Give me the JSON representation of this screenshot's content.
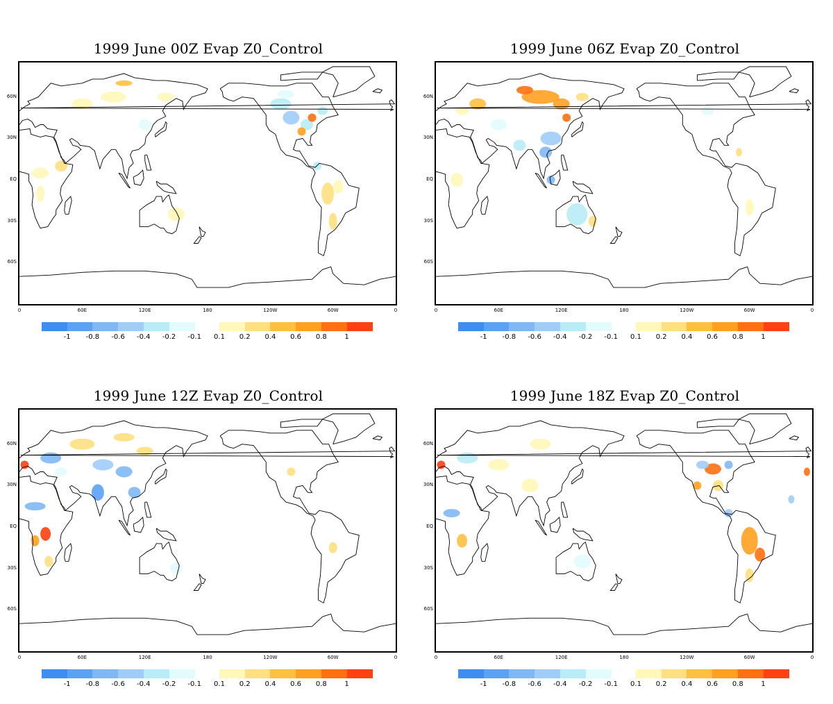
{
  "panels": [
    {
      "title": "1999 June  00Z Evap Z0_Control",
      "hour": "00Z"
    },
    {
      "title": "1999  June 06Z Evap Z0_Control",
      "hour": "06Z"
    },
    {
      "title": "1999  June 12Z Evap Z0_Control",
      "hour": "12Z"
    },
    {
      "title": "1999  June 18Z Evap Z0_Control",
      "hour": "18Z"
    }
  ],
  "lat_labels": [
    "60N",
    "30N",
    "EQ",
    "30S",
    "60S"
  ],
  "lon_labels": [
    "0",
    "60E",
    "120E",
    "180",
    "120W",
    "60W",
    "0"
  ],
  "colorbar": {
    "negative_colors": [
      "#3d8ef0",
      "#5aa2f2",
      "#7fb8f5",
      "#a0cdf7",
      "#b8ecf6",
      "#e2fcfe"
    ],
    "positive_colors": [
      "#fff8b8",
      "#ffe080",
      "#ffc040",
      "#ffa020",
      "#ff7010",
      "#ff4010"
    ],
    "negative_labels": [
      "-1",
      "-0.8",
      "-0.6",
      "-0.4",
      "-0.2",
      "-0.1"
    ],
    "positive_labels": [
      "0.1",
      "0.2",
      "0.4",
      "0.6",
      "0.8",
      "1"
    ]
  },
  "map": {
    "projection": "cylindrical",
    "lon_range": [
      0,
      360
    ],
    "lat_range": [
      -90,
      90
    ],
    "colors": {
      "coastline": "#000000",
      "background": "#ffffff"
    }
  }
}
